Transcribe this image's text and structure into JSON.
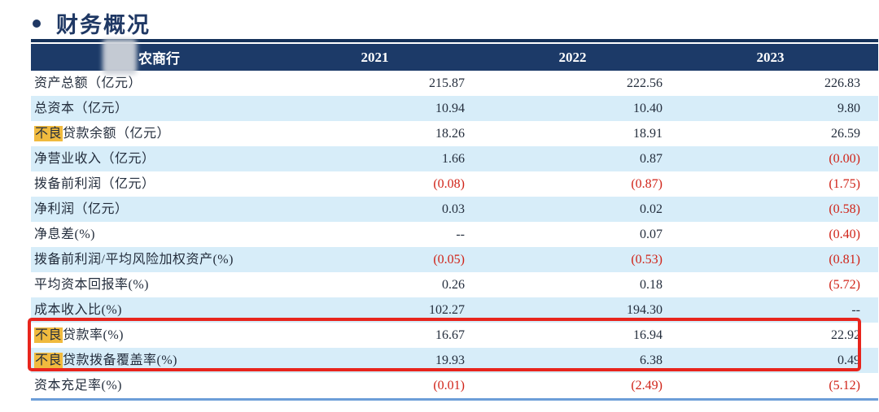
{
  "title": {
    "text": "财务概况"
  },
  "table": {
    "header": {
      "entity_suffix": "农商行",
      "entity_note": "redacted",
      "years": [
        "2021",
        "2022",
        "2023"
      ]
    },
    "rows": [
      {
        "label_prefix": "",
        "label": "资产总额（亿元）",
        "values": [
          "215.87",
          "222.56",
          "226.83"
        ]
      },
      {
        "label_prefix": "",
        "label": "总资本（亿元）",
        "values": [
          "10.94",
          "10.40",
          "9.80"
        ]
      },
      {
        "label_prefix": "不良",
        "label": "贷款余额（亿元）",
        "values": [
          "18.26",
          "18.91",
          "26.59"
        ]
      },
      {
        "label_prefix": "",
        "label": "净营业收入（亿元）",
        "values": [
          "1.66",
          "0.87",
          "(0.00)"
        ]
      },
      {
        "label_prefix": "",
        "label": "拨备前利润（亿元）",
        "values": [
          "(0.08)",
          "(0.87)",
          "(1.75)"
        ]
      },
      {
        "label_prefix": "",
        "label": "净利润（亿元）",
        "values": [
          "0.03",
          "0.02",
          "(0.58)"
        ]
      },
      {
        "label_prefix": "",
        "label": "净息差(%)",
        "values": [
          "--",
          "0.07",
          "(0.40)"
        ]
      },
      {
        "label_prefix": "",
        "label": "拨备前利润/平均风险加权资产(%)",
        "values": [
          "(0.05)",
          "(0.53)",
          "(0.81)"
        ]
      },
      {
        "label_prefix": "",
        "label": "平均资本回报率(%)",
        "values": [
          "0.26",
          "0.18",
          "(5.72)"
        ]
      },
      {
        "label_prefix": "",
        "label": "成本收入比(%)",
        "values": [
          "102.27",
          "194.30",
          "--"
        ]
      },
      {
        "label_prefix": "不良",
        "label": "贷款率(%)",
        "values": [
          "16.67",
          "16.94",
          "22.92"
        ]
      },
      {
        "label_prefix": "不良",
        "label": "贷款拨备覆盖率(%)",
        "values": [
          "19.93",
          "6.38",
          "0.49"
        ]
      },
      {
        "label_prefix": "",
        "label": "资本充足率(%)",
        "values": [
          "(0.01)",
          "(2.49)",
          "(5.12)"
        ]
      }
    ]
  },
  "annotation": {
    "type": "red-highlight-box",
    "rows_enclosed": [
      "不良贷款率(%)",
      "不良贷款拨备覆盖率(%)"
    ]
  },
  "colors": {
    "header_bg": "#1c3a68",
    "title": "#1f3864",
    "row_alt_bg": "#d7edf9",
    "negative_value": "#d02318",
    "highlight_bg": "#f0ba3e",
    "annotation_border": "#e8251d",
    "bottom_rule": "#6c9ed8"
  }
}
